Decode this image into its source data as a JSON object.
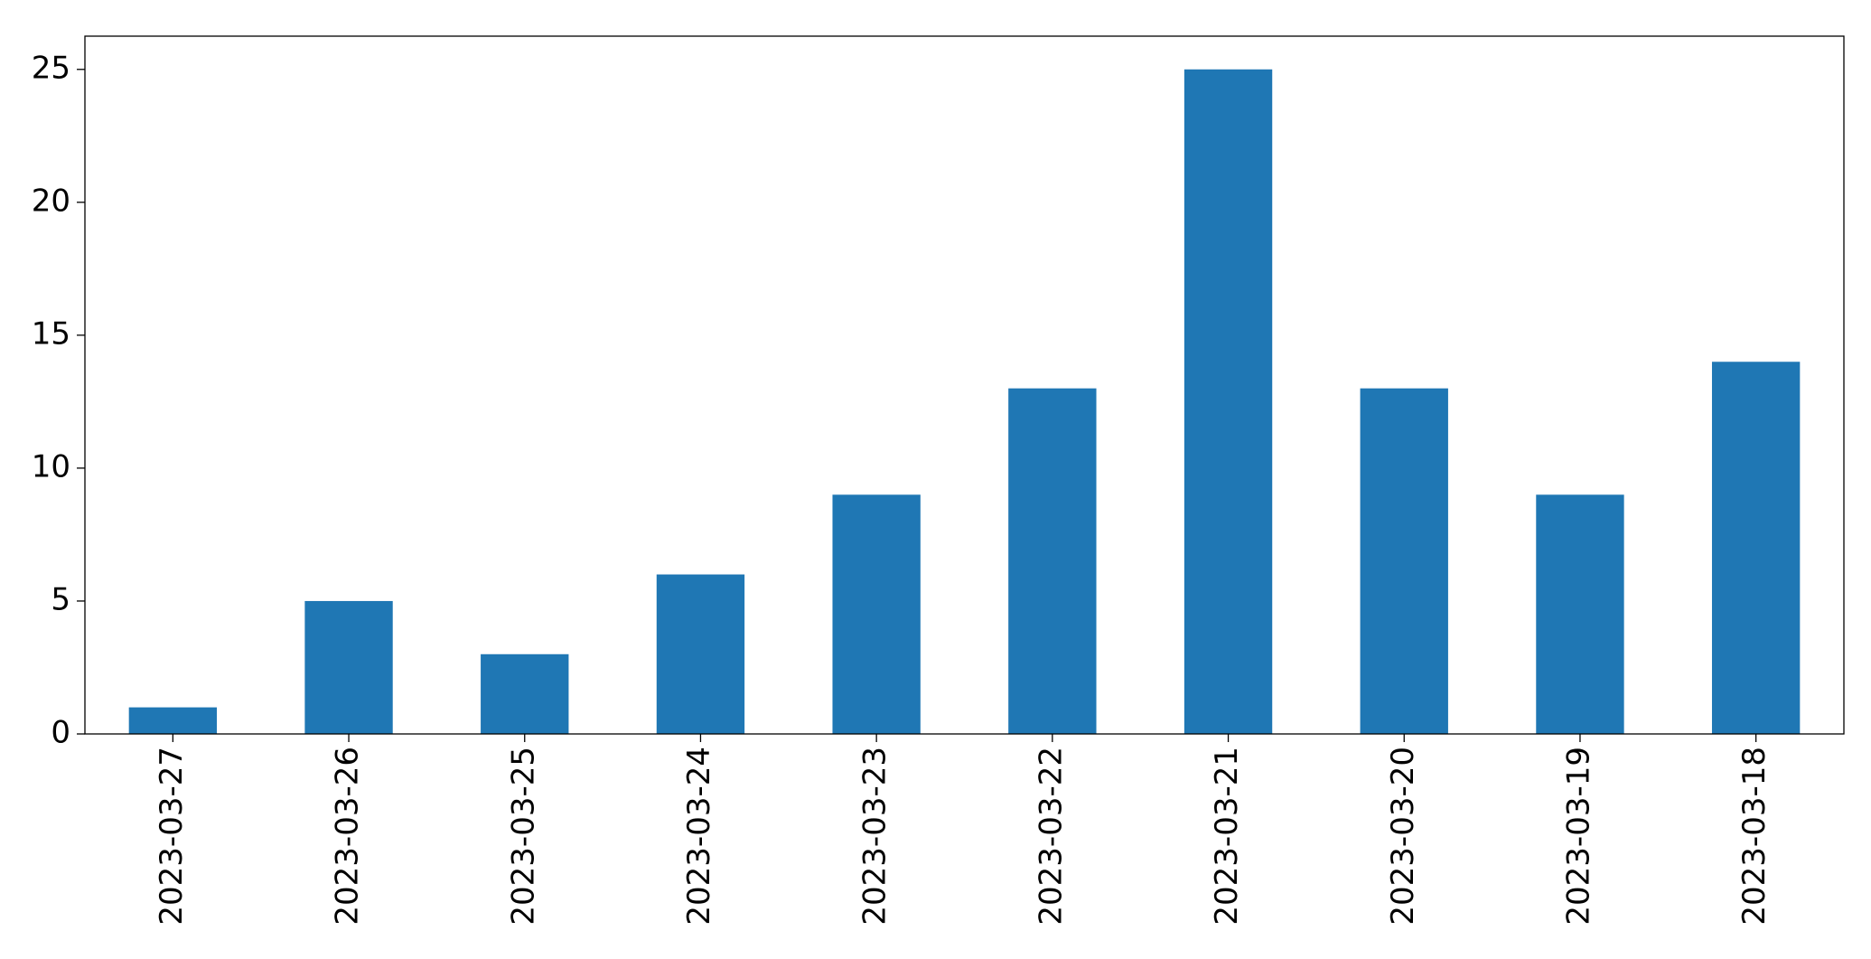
{
  "chart_data": {
    "type": "bar",
    "categories": [
      "2023-03-27",
      "2023-03-26",
      "2023-03-25",
      "2023-03-24",
      "2023-03-23",
      "2023-03-22",
      "2023-03-21",
      "2023-03-20",
      "2023-03-19",
      "2023-03-18"
    ],
    "values": [
      1,
      5,
      3,
      6,
      9,
      13,
      25,
      13,
      9,
      14
    ],
    "color": "#1f77b4",
    "ylim": [
      0,
      26.25
    ],
    "yticks": [
      0,
      5,
      10,
      15,
      20,
      25
    ],
    "grid": false
  }
}
